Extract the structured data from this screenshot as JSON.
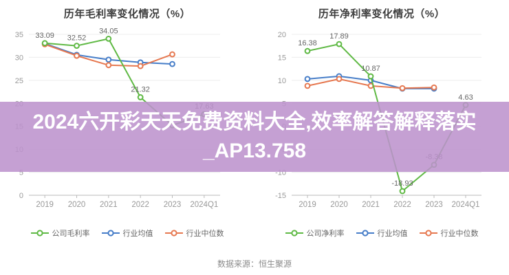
{
  "banner": {
    "line1": "2024六开彩天天免费资料大全,效率解答解释落实",
    "line2": "_AP13.758",
    "background_color": "#bc92cd",
    "background_opacity": 0.87,
    "text_color": "#ffffff"
  },
  "source_label": "数据来源：恒生聚源",
  "axis_color": "#999999",
  "label_color": "#666666",
  "chart_data": [
    {
      "type": "line",
      "title": "历年毛利率变化情况（%）",
      "categories": [
        "2019",
        "2020",
        "2021",
        "2022",
        "2023",
        "2024Q1"
      ],
      "ylim": [
        0,
        35
      ],
      "ytick_step": 5,
      "grid": true,
      "legend_position": "bottom",
      "series": [
        {
          "name": "公司毛利率",
          "color": "#5fb944",
          "values": [
            33.09,
            32.52,
            34.05,
            21.32,
            15.2,
            17.63
          ],
          "point_labels": [
            "33.09",
            "32.52",
            "34.05",
            "21.32",
            "",
            "17.63"
          ]
        },
        {
          "name": "行业均值",
          "color": "#467dc8",
          "values": [
            33.0,
            30.55,
            29.5,
            28.9,
            28.55,
            null
          ],
          "point_labels": []
        },
        {
          "name": "行业中位数",
          "color": "#e67850",
          "values": [
            32.85,
            30.35,
            28.3,
            28.1,
            30.65,
            null
          ],
          "point_labels": []
        }
      ]
    },
    {
      "type": "line",
      "title": "历年净利率变化情况（%）",
      "categories": [
        "2019",
        "2020",
        "2021",
        "2022",
        "2023",
        "2024Q1"
      ],
      "ylim": [
        -15,
        20
      ],
      "ytick_step": 5,
      "grid": true,
      "legend_position": "bottom",
      "series": [
        {
          "name": "公司净利率",
          "color": "#5fb944",
          "values": [
            16.38,
            17.89,
            10.87,
            -18.93,
            -8.38,
            4.63
          ],
          "point_labels": [
            "16.38",
            "17.89",
            "10.87",
            "-18.93",
            "-8.38",
            "4.63"
          ]
        },
        {
          "name": "行业均值",
          "color": "#467dc8",
          "values": [
            10.3,
            10.9,
            10.0,
            8.2,
            8.2,
            null
          ],
          "point_labels": []
        },
        {
          "name": "行业中位数",
          "color": "#e67850",
          "values": [
            8.8,
            10.3,
            8.8,
            8.3,
            8.45,
            null
          ],
          "point_labels": []
        }
      ]
    }
  ]
}
